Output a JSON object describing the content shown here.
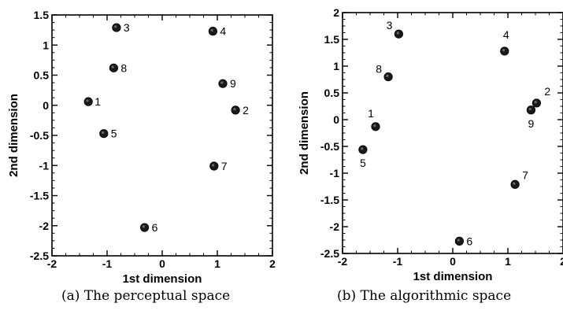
{
  "chart_data": [
    {
      "type": "scatter",
      "caption": "(a) The perceptual space",
      "xlabel": "1st dimension",
      "ylabel": "2nd dimension",
      "xlim": [
        -2,
        2
      ],
      "ylim": [
        -2.5,
        1.5
      ],
      "xticks": [
        "-2",
        "-1",
        "0",
        "1",
        "2"
      ],
      "yticks": [
        "-2.5",
        "-2",
        "-1.5",
        "-1",
        "-0.5",
        "0",
        "0.5",
        "1",
        "1.5"
      ],
      "points": [
        {
          "label": "1",
          "x": -1.34,
          "y": 0.06
        },
        {
          "label": "2",
          "x": 1.33,
          "y": -0.08
        },
        {
          "label": "3",
          "x": -0.83,
          "y": 1.29
        },
        {
          "label": "4",
          "x": 0.92,
          "y": 1.23
        },
        {
          "label": "5",
          "x": -1.06,
          "y": -0.47
        },
        {
          "label": "6",
          "x": -0.32,
          "y": -2.03
        },
        {
          "label": "7",
          "x": 0.94,
          "y": -1.01
        },
        {
          "label": "8",
          "x": -0.88,
          "y": 0.62
        },
        {
          "label": "9",
          "x": 1.1,
          "y": 0.36
        }
      ]
    },
    {
      "type": "scatter",
      "caption": "(b) The algorithmic space",
      "xlabel": "1st dimension",
      "ylabel": "2nd dimension",
      "xlim": [
        -2,
        2
      ],
      "ylim": [
        -2.5,
        2
      ],
      "xticks": [
        "-2",
        "-1",
        "0",
        "1",
        "2"
      ],
      "yticks": [
        "-2.5",
        "-2",
        "-1.5",
        "-1",
        "-0.5",
        "0",
        "0.5",
        "1",
        "1.5",
        "2"
      ],
      "points": [
        {
          "label": "1",
          "x": -1.4,
          "y": -0.13
        },
        {
          "label": "2",
          "x": 1.52,
          "y": 0.31
        },
        {
          "label": "3",
          "x": -0.98,
          "y": 1.6
        },
        {
          "label": "4",
          "x": 0.94,
          "y": 1.28
        },
        {
          "label": "5",
          "x": -1.63,
          "y": -0.56
        },
        {
          "label": "6",
          "x": 0.12,
          "y": -2.27
        },
        {
          "label": "7",
          "x": 1.13,
          "y": -1.21
        },
        {
          "label": "8",
          "x": -1.17,
          "y": 0.8
        },
        {
          "label": "9",
          "x": 1.42,
          "y": 0.18
        }
      ]
    }
  ]
}
